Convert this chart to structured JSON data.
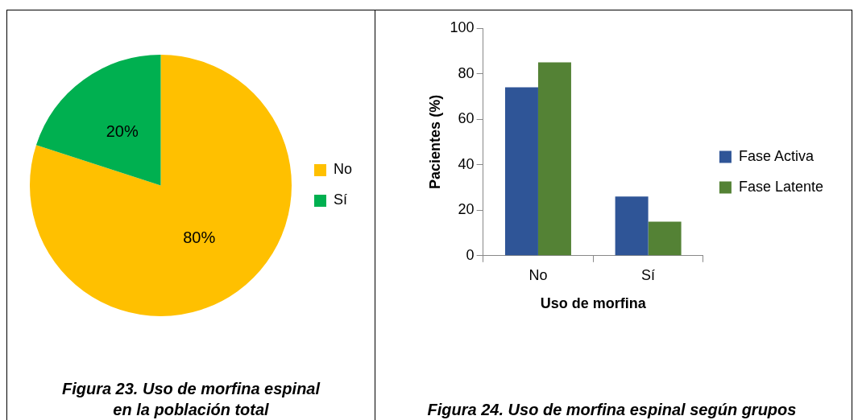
{
  "chart_data": [
    {
      "type": "pie",
      "title": "Figura 23. Uso de morfina espinal en la población total",
      "categories": [
        "No",
        "Sí"
      ],
      "values": [
        80,
        20
      ],
      "colors": [
        "#ffc000",
        "#00b050"
      ],
      "value_labels": [
        "80%",
        "20%"
      ],
      "legend": "right"
    },
    {
      "type": "bar",
      "title": "Figura 24. Uso de morfina espinal según grupos",
      "xlabel": "Uso de morfina",
      "ylabel": "Pacientes (%)",
      "categories": [
        "No",
        "Sí"
      ],
      "series": [
        {
          "name": "Fase Activa",
          "color": "#2f5597",
          "values": [
            74,
            26
          ]
        },
        {
          "name": "Fase Latente",
          "color": "#548235",
          "values": [
            85,
            15
          ]
        }
      ],
      "ylim": [
        0,
        100
      ],
      "yticks": [
        0,
        20,
        40,
        60,
        80,
        100
      ],
      "grid": false,
      "legend": "right"
    }
  ]
}
